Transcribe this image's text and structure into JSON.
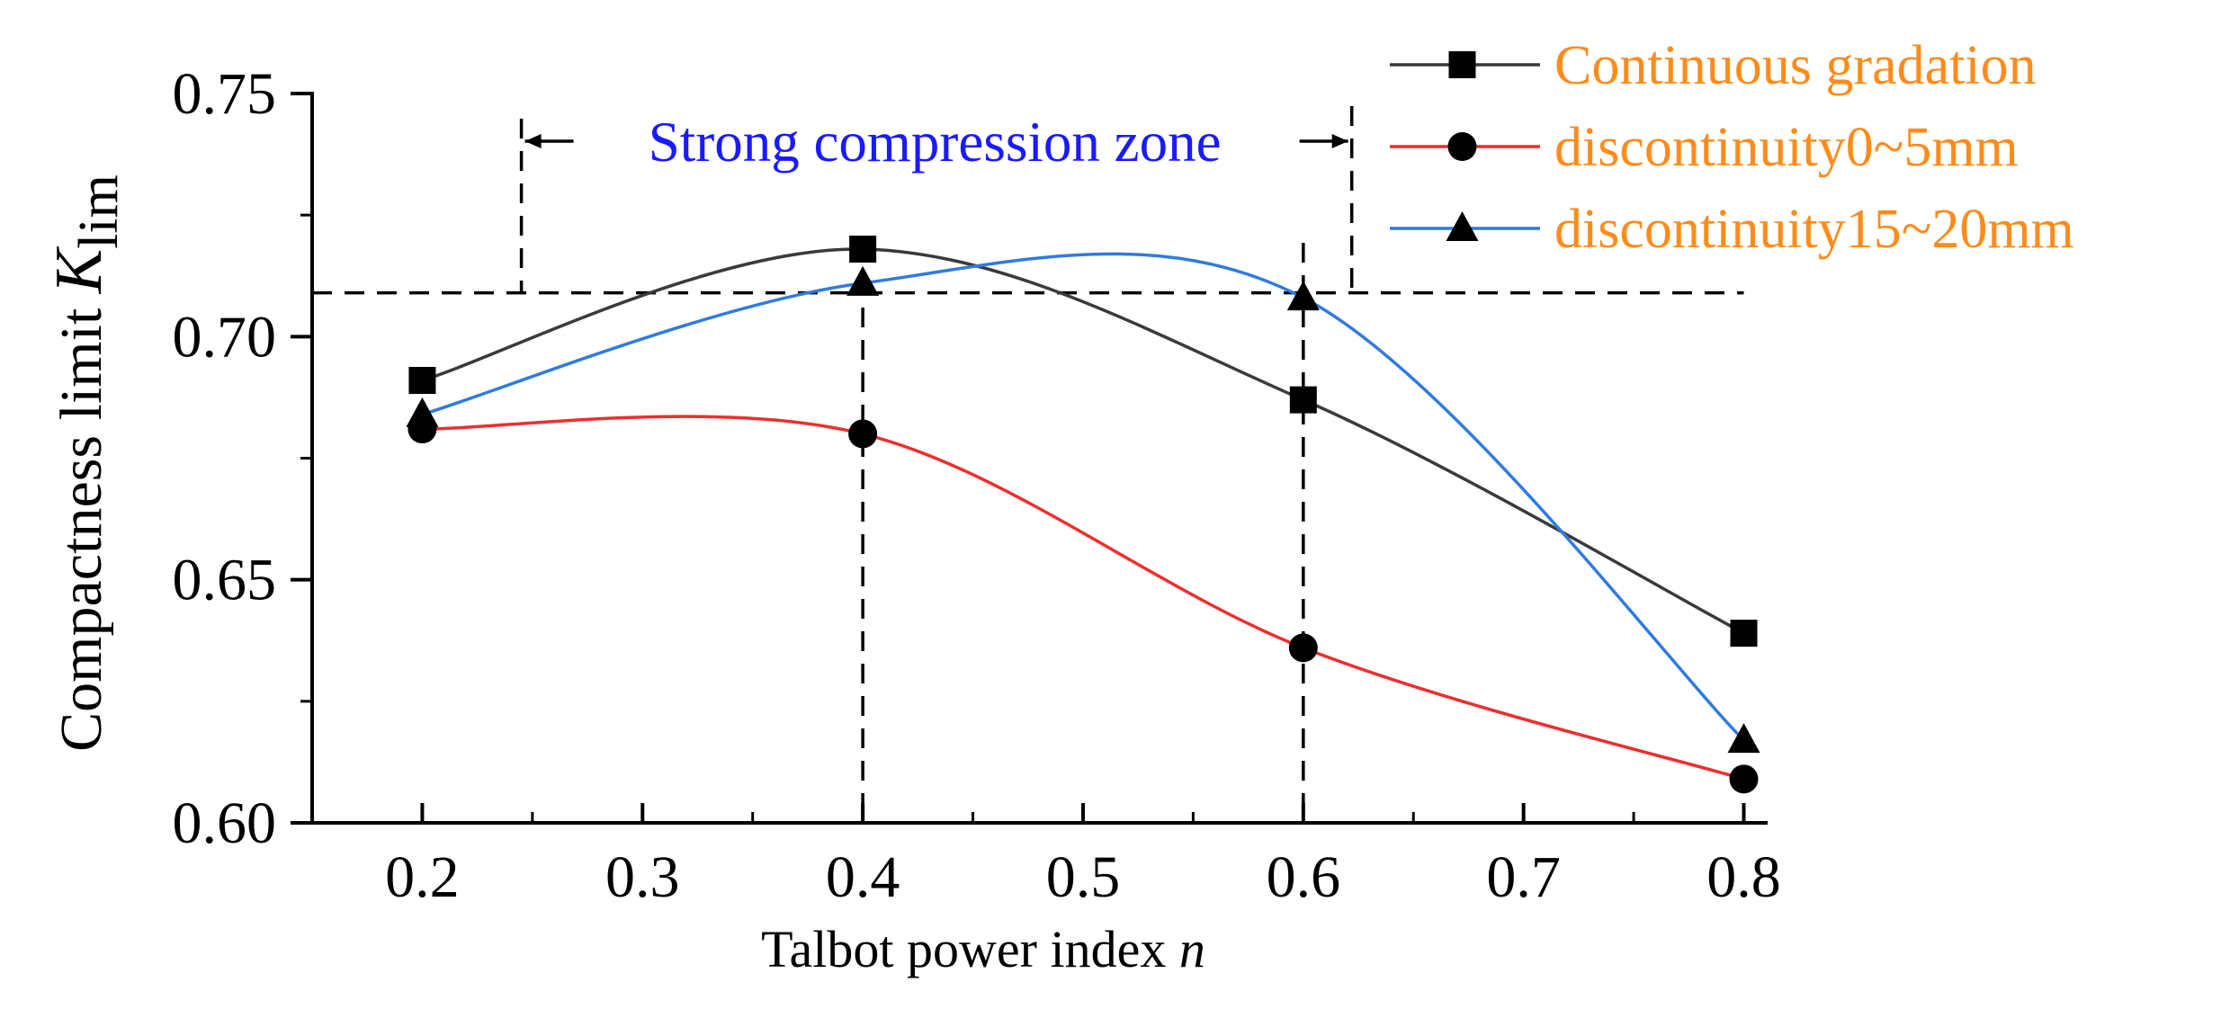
{
  "chart_data": {
    "type": "line",
    "xlabel": "Talbot power index",
    "xlabel_var": "n",
    "ylabel": "Compactness limit",
    "ylabel_var": "K",
    "ylabel_sub": "lim",
    "xlim": [
      0.15,
      0.81
    ],
    "ylim": [
      0.6,
      0.75
    ],
    "x_ticks": [
      0.2,
      0.3,
      0.4,
      0.5,
      0.6,
      0.7,
      0.8
    ],
    "x_tick_labels": [
      "0.2",
      "0.3",
      "0.4",
      "0.5",
      "0.6",
      "0.7",
      "0.8"
    ],
    "y_ticks": [
      0.6,
      0.65,
      0.7,
      0.75
    ],
    "y_tick_labels": [
      "0.60",
      "0.65",
      "0.70",
      "0.75"
    ],
    "x_minor_ticks": [
      0.25,
      0.35,
      0.45,
      0.55,
      0.65,
      0.75
    ],
    "y_minor_ticks": [
      0.625,
      0.675,
      0.725
    ],
    "series": [
      {
        "name": "Continuous gradation",
        "marker": "square",
        "color": "#3a3a3a",
        "x": [
          0.2,
          0.4,
          0.6,
          0.8
        ],
        "values": [
          0.691,
          0.718,
          0.687,
          0.639
        ]
      },
      {
        "name": "discontinuity0~5mm",
        "marker": "circle",
        "color": "#ee2e2e",
        "x": [
          0.2,
          0.4,
          0.6,
          0.8
        ],
        "values": [
          0.681,
          0.68,
          0.636,
          0.609
        ]
      },
      {
        "name": "discontinuity15~20mm",
        "marker": "triangle",
        "color": "#2f7be0",
        "x": [
          0.2,
          0.4,
          0.6,
          0.8
        ],
        "values": [
          0.684,
          0.711,
          0.708,
          0.617
        ]
      }
    ],
    "annotations": {
      "zone_label": "Strong compression zone",
      "zone_x_range": [
        0.245,
        0.622
      ],
      "zone_threshold_y": 0.709,
      "vertical_guides_x": [
        0.4,
        0.6
      ]
    },
    "legend_position": "top-right",
    "legend_text_color": "#ff8c1a",
    "zone_label_color": "#1a1aff"
  }
}
